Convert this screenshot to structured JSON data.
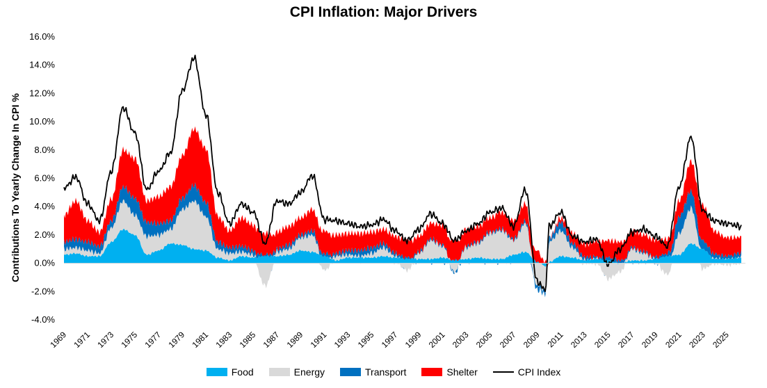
{
  "chart_data": {
    "type": "area",
    "title": "CPI Inflation: Major Drivers",
    "xlabel": "",
    "ylabel": "Contributions To Yearly Change In CPI %",
    "ylim": [
      -4,
      16
    ],
    "xlim": [
      1969,
      2026.6
    ],
    "y_ticks": [
      "-4.0%",
      "-2.0%",
      "0.0%",
      "2.0%",
      "4.0%",
      "6.0%",
      "8.0%",
      "10.0%",
      "12.0%",
      "14.0%",
      "16.0%"
    ],
    "x_ticks": [
      "1969",
      "1971",
      "1973",
      "1975",
      "1977",
      "1979",
      "1981",
      "1983",
      "1985",
      "1987",
      "1989",
      "1991",
      "1993",
      "1995",
      "1997",
      "1999",
      "2001",
      "2003",
      "2005",
      "2007",
      "2009",
      "2011",
      "2013",
      "2015",
      "2017",
      "2019",
      "2021",
      "2023",
      "2025"
    ],
    "legend_position": "bottom",
    "series": [
      {
        "name": "Food",
        "color": "#00B0F0",
        "points": [
          [
            1969,
            0.6
          ],
          [
            1970,
            0.7
          ],
          [
            1971,
            0.5
          ],
          [
            1972,
            0.5
          ],
          [
            1973,
            1.5
          ],
          [
            1974,
            2.4
          ],
          [
            1975,
            2.0
          ],
          [
            1976,
            0.6
          ],
          [
            1977,
            0.9
          ],
          [
            1978,
            1.4
          ],
          [
            1979,
            1.3
          ],
          [
            1980,
            1.0
          ],
          [
            1981,
            0.9
          ],
          [
            1982,
            0.4
          ],
          [
            1983,
            0.2
          ],
          [
            1984,
            0.5
          ],
          [
            1985,
            0.4
          ],
          [
            1986,
            0.5
          ],
          [
            1987,
            0.5
          ],
          [
            1988,
            0.6
          ],
          [
            1989,
            0.9
          ],
          [
            1990,
            0.8
          ],
          [
            1991,
            0.5
          ],
          [
            1992,
            0.2
          ],
          [
            1993,
            0.4
          ],
          [
            1994,
            0.4
          ],
          [
            1995,
            0.4
          ],
          [
            1996,
            0.5
          ],
          [
            1997,
            0.4
          ],
          [
            1998,
            0.3
          ],
          [
            1999,
            0.3
          ],
          [
            2000,
            0.3
          ],
          [
            2001,
            0.4
          ],
          [
            2002,
            0.2
          ],
          [
            2003,
            0.3
          ],
          [
            2004,
            0.4
          ],
          [
            2005,
            0.3
          ],
          [
            2006,
            0.3
          ],
          [
            2007,
            0.6
          ],
          [
            2008,
            0.8
          ],
          [
            2009,
            0.1
          ],
          [
            2009.7,
            -0.2
          ],
          [
            2010,
            0.1
          ],
          [
            2011,
            0.5
          ],
          [
            2012,
            0.4
          ],
          [
            2013,
            0.2
          ],
          [
            2014,
            0.3
          ],
          [
            2015,
            0.2
          ],
          [
            2016,
            0.0
          ],
          [
            2017,
            0.2
          ],
          [
            2018,
            0.2
          ],
          [
            2019,
            0.3
          ],
          [
            2020,
            0.5
          ],
          [
            2021,
            0.6
          ],
          [
            2022,
            1.4
          ],
          [
            2023,
            1.0
          ],
          [
            2024,
            0.3
          ],
          [
            2025,
            0.3
          ],
          [
            2026.3,
            0.4
          ]
        ]
      },
      {
        "name": "Energy",
        "color": "#D9D9D9",
        "points": [
          [
            1969,
            0.4
          ],
          [
            1970,
            0.4
          ],
          [
            1971,
            0.4
          ],
          [
            1972,
            0.2
          ],
          [
            1973,
            1.0
          ],
          [
            1974,
            2.0
          ],
          [
            1975,
            1.4
          ],
          [
            1976,
            1.3
          ],
          [
            1977,
            1.1
          ],
          [
            1978,
            1.0
          ],
          [
            1979,
            2.5
          ],
          [
            1980,
            3.4
          ],
          [
            1981,
            2.4
          ],
          [
            1982,
            0.6
          ],
          [
            1983,
            0.5
          ],
          [
            1984,
            0.3
          ],
          [
            1985,
            0.2
          ],
          [
            1986,
            -1.6
          ],
          [
            1987,
            0.3
          ],
          [
            1988,
            0.4
          ],
          [
            1989,
            0.9
          ],
          [
            1990,
            1.2
          ],
          [
            1991,
            -0.5
          ],
          [
            1992,
            0.3
          ],
          [
            1993,
            0.2
          ],
          [
            1994,
            0.1
          ],
          [
            1995,
            0.3
          ],
          [
            1996,
            0.6
          ],
          [
            1997,
            0.1
          ],
          [
            1998,
            -0.5
          ],
          [
            1999,
            0.4
          ],
          [
            2000,
            1.3
          ],
          [
            2001,
            0.8
          ],
          [
            2002,
            -0.6
          ],
          [
            2003,
            0.8
          ],
          [
            2004,
            1.0
          ],
          [
            2005,
            1.8
          ],
          [
            2006,
            2.0
          ],
          [
            2007,
            1.0
          ],
          [
            2008,
            2.0
          ],
          [
            2009,
            -1.6
          ],
          [
            2009.7,
            -1.8
          ],
          [
            2010,
            1.4
          ],
          [
            2011,
            1.8
          ],
          [
            2012,
            0.7
          ],
          [
            2013,
            0.0
          ],
          [
            2014,
            0.0
          ],
          [
            2015,
            -1.1
          ],
          [
            2016,
            -0.6
          ],
          [
            2017,
            0.8
          ],
          [
            2018,
            0.5
          ],
          [
            2019,
            0.0
          ],
          [
            2020,
            -0.8
          ],
          [
            2021,
            1.5
          ],
          [
            2022,
            2.5
          ],
          [
            2023,
            -0.4
          ],
          [
            2024,
            0.0
          ],
          [
            2025,
            -0.1
          ],
          [
            2026.3,
            0.0
          ]
        ]
      },
      {
        "name": "Transport",
        "color": "#0070C0",
        "points": [
          [
            1969,
            0.5
          ],
          [
            1970,
            0.6
          ],
          [
            1971,
            0.6
          ],
          [
            1972,
            0.5
          ],
          [
            1973,
            0.5
          ],
          [
            1974,
            1.0
          ],
          [
            1975,
            1.2
          ],
          [
            1976,
            1.0
          ],
          [
            1977,
            0.8
          ],
          [
            1978,
            0.6
          ],
          [
            1979,
            0.8
          ],
          [
            1980,
            1.1
          ],
          [
            1981,
            1.0
          ],
          [
            1982,
            0.5
          ],
          [
            1983,
            0.4
          ],
          [
            1984,
            0.4
          ],
          [
            1985,
            0.3
          ],
          [
            1986,
            0.1
          ],
          [
            1987,
            0.2
          ],
          [
            1988,
            0.3
          ],
          [
            1989,
            0.2
          ],
          [
            1990,
            0.3
          ],
          [
            1991,
            0.2
          ],
          [
            1992,
            0.2
          ],
          [
            1993,
            0.3
          ],
          [
            1994,
            0.4
          ],
          [
            1995,
            0.4
          ],
          [
            1996,
            0.3
          ],
          [
            1997,
            0.2
          ],
          [
            1998,
            0.1
          ],
          [
            1999,
            0.1
          ],
          [
            2000,
            0.1
          ],
          [
            2001,
            0.1
          ],
          [
            2002,
            -0.1
          ],
          [
            2003,
            0.1
          ],
          [
            2004,
            0.1
          ],
          [
            2005,
            0.1
          ],
          [
            2006,
            0.1
          ],
          [
            2007,
            0.1
          ],
          [
            2008,
            0.2
          ],
          [
            2009,
            -0.3
          ],
          [
            2009.7,
            -0.2
          ],
          [
            2010,
            0.3
          ],
          [
            2011,
            0.6
          ],
          [
            2012,
            0.3
          ],
          [
            2013,
            0.2
          ],
          [
            2014,
            0.1
          ],
          [
            2015,
            0.2
          ],
          [
            2016,
            0.2
          ],
          [
            2017,
            0.1
          ],
          [
            2018,
            0.1
          ],
          [
            2019,
            0.1
          ],
          [
            2020,
            0.2
          ],
          [
            2021,
            1.2
          ],
          [
            2022,
            1.2
          ],
          [
            2023,
            0.6
          ],
          [
            2024,
            0.3
          ],
          [
            2025,
            0.2
          ],
          [
            2026.3,
            0.3
          ]
        ]
      },
      {
        "name": "Shelter",
        "color": "#FF0000",
        "points": [
          [
            1969,
            1.9
          ],
          [
            1970,
            2.7
          ],
          [
            1971,
            1.5
          ],
          [
            1972,
            1.0
          ],
          [
            1973,
            1.5
          ],
          [
            1974,
            2.6
          ],
          [
            1975,
            2.8
          ],
          [
            1976,
            1.5
          ],
          [
            1977,
            1.9
          ],
          [
            1978,
            2.4
          ],
          [
            1979,
            3.0
          ],
          [
            1980,
            4.0
          ],
          [
            1981,
            3.8
          ],
          [
            1982,
            1.8
          ],
          [
            1983,
            1.2
          ],
          [
            1984,
            2.0
          ],
          [
            1985,
            1.8
          ],
          [
            1986,
            1.5
          ],
          [
            1987,
            1.2
          ],
          [
            1988,
            1.3
          ],
          [
            1989,
            1.2
          ],
          [
            1990,
            1.5
          ],
          [
            1991,
            1.6
          ],
          [
            1992,
            1.3
          ],
          [
            1993,
            1.2
          ],
          [
            1994,
            1.2
          ],
          [
            1995,
            1.1
          ],
          [
            1996,
            1.0
          ],
          [
            1997,
            1.2
          ],
          [
            1998,
            1.3
          ],
          [
            1999,
            1.1
          ],
          [
            2000,
            1.1
          ],
          [
            2001,
            1.4
          ],
          [
            2002,
            1.4
          ],
          [
            2003,
            1.2
          ],
          [
            2004,
            1.1
          ],
          [
            2005,
            1.0
          ],
          [
            2006,
            1.2
          ],
          [
            2007,
            1.3
          ],
          [
            2008,
            1.2
          ],
          [
            2009,
            0.8
          ],
          [
            2009.7,
            0.1
          ],
          [
            2010,
            0.0
          ],
          [
            2011,
            0.3
          ],
          [
            2012,
            0.7
          ],
          [
            2013,
            0.9
          ],
          [
            2014,
            1.1
          ],
          [
            2015,
            1.2
          ],
          [
            2016,
            1.3
          ],
          [
            2017,
            1.2
          ],
          [
            2018,
            1.2
          ],
          [
            2019,
            1.2
          ],
          [
            2020,
            1.0
          ],
          [
            2021,
            1.1
          ],
          [
            2022,
            2.1
          ],
          [
            2023,
            2.5
          ],
          [
            2024,
            1.6
          ],
          [
            2025,
            1.3
          ],
          [
            2026.3,
            1.1
          ]
        ]
      },
      {
        "name": "CPI Index",
        "color": "#000000",
        "kind": "line",
        "points": [
          [
            1969,
            5.3
          ],
          [
            1970,
            6.1
          ],
          [
            1971,
            4.2
          ],
          [
            1972,
            3.0
          ],
          [
            1973,
            6.5
          ],
          [
            1974,
            11.0
          ],
          [
            1975,
            9.2
          ],
          [
            1976,
            5.2
          ],
          [
            1977,
            6.5
          ],
          [
            1978,
            7.8
          ],
          [
            1979,
            12.2
          ],
          [
            1980,
            14.5
          ],
          [
            1981,
            10.5
          ],
          [
            1982,
            5.0
          ],
          [
            1983,
            2.8
          ],
          [
            1984,
            4.2
          ],
          [
            1985,
            3.6
          ],
          [
            1986,
            1.4
          ],
          [
            1987,
            4.4
          ],
          [
            1988,
            4.2
          ],
          [
            1989,
            5.0
          ],
          [
            1990,
            6.2
          ],
          [
            1991,
            3.1
          ],
          [
            1992,
            3.0
          ],
          [
            1993,
            2.8
          ],
          [
            1994,
            2.6
          ],
          [
            1995,
            2.7
          ],
          [
            1996,
            3.1
          ],
          [
            1997,
            2.3
          ],
          [
            1998,
            1.6
          ],
          [
            1999,
            2.4
          ],
          [
            2000,
            3.5
          ],
          [
            2001,
            2.8
          ],
          [
            2002,
            1.6
          ],
          [
            2003,
            2.3
          ],
          [
            2004,
            2.8
          ],
          [
            2005,
            3.6
          ],
          [
            2006,
            3.9
          ],
          [
            2007,
            2.6
          ],
          [
            2008,
            5.2
          ],
          [
            2009,
            -1.3
          ],
          [
            2009.7,
            -1.9
          ],
          [
            2010,
            2.6
          ],
          [
            2011,
            3.6
          ],
          [
            2012,
            1.9
          ],
          [
            2013,
            1.5
          ],
          [
            2014,
            1.7
          ],
          [
            2015,
            -0.1
          ],
          [
            2016,
            1.0
          ],
          [
            2017,
            2.2
          ],
          [
            2018,
            2.4
          ],
          [
            2019,
            1.9
          ],
          [
            2020,
            1.2
          ],
          [
            2021,
            5.4
          ],
          [
            2022,
            8.9
          ],
          [
            2023,
            3.7
          ],
          [
            2024,
            3.0
          ],
          [
            2025,
            2.8
          ],
          [
            2026.3,
            2.6
          ]
        ]
      }
    ]
  }
}
